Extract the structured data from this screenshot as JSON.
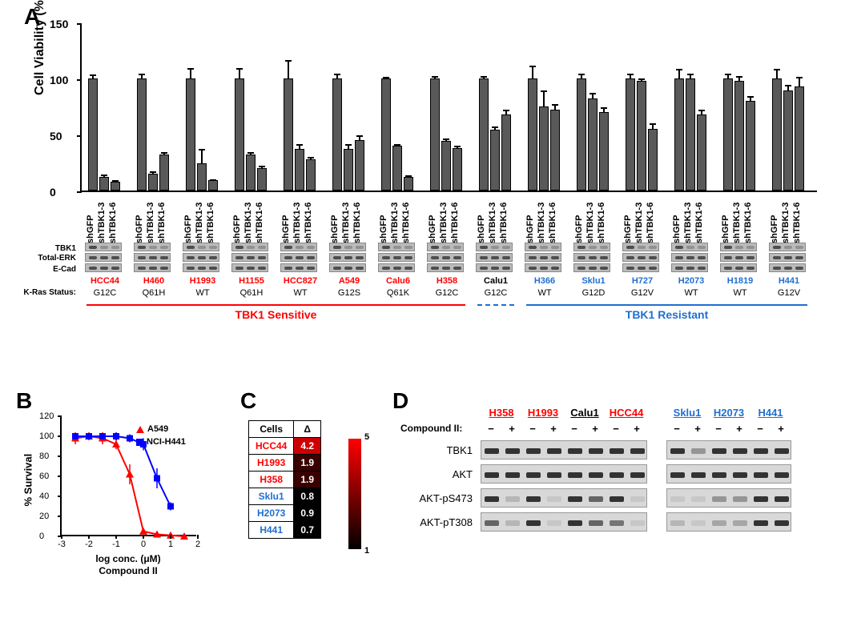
{
  "panelA": {
    "label": "A",
    "ylabel": "Cell Viability (%)",
    "ylim": [
      0,
      150
    ],
    "yticks": [
      0,
      50,
      100,
      150
    ],
    "bar_color": "#595959",
    "conditions": [
      "shGFP",
      "shTBK1-3",
      "shTBK1-6"
    ],
    "blot_rows": [
      "TBK1",
      "Total-ERK",
      "E-Cad"
    ],
    "cell_lines": [
      {
        "name": "HCC44",
        "kras": "G12C",
        "group": "sensitive",
        "color": "#ff0000",
        "values": [
          100,
          12,
          8
        ],
        "err": [
          4,
          3,
          2
        ]
      },
      {
        "name": "H460",
        "kras": "Q61H",
        "group": "sensitive",
        "color": "#ff0000",
        "values": [
          100,
          15,
          32
        ],
        "err": [
          5,
          3,
          3
        ]
      },
      {
        "name": "H1993",
        "kras": "WT",
        "group": "sensitive",
        "color": "#ff0000",
        "values": [
          100,
          24,
          9
        ],
        "err": [
          10,
          14,
          2
        ]
      },
      {
        "name": "H1155",
        "kras": "Q61H",
        "group": "sensitive",
        "color": "#ff0000",
        "values": [
          100,
          32,
          20
        ],
        "err": [
          10,
          3,
          3
        ]
      },
      {
        "name": "HCC827",
        "kras": "WT",
        "group": "sensitive",
        "color": "#ff0000",
        "values": [
          100,
          37,
          28
        ],
        "err": [
          17,
          5,
          3
        ]
      },
      {
        "name": "A549",
        "kras": "G12S",
        "group": "sensitive",
        "color": "#ff0000",
        "values": [
          100,
          37,
          45
        ],
        "err": [
          5,
          5,
          5
        ]
      },
      {
        "name": "Calu6",
        "kras": "Q61K",
        "group": "sensitive",
        "color": "#ff0000",
        "values": [
          100,
          40,
          12
        ],
        "err": [
          2,
          2,
          2
        ]
      },
      {
        "name": "H358",
        "kras": "G12C",
        "group": "sensitive",
        "color": "#ff0000",
        "values": [
          100,
          44,
          38
        ],
        "err": [
          3,
          3,
          3
        ]
      },
      {
        "name": "Calu1",
        "kras": "G12C",
        "group": "intermediate",
        "color": "#000000",
        "values": [
          100,
          54,
          68
        ],
        "err": [
          3,
          4,
          5
        ]
      },
      {
        "name": "H366",
        "kras": "WT",
        "group": "resistant",
        "color": "#1f6fd1",
        "values": [
          100,
          75,
          72
        ],
        "err": [
          12,
          15,
          6
        ]
      },
      {
        "name": "Sklu1",
        "kras": "G12D",
        "group": "resistant",
        "color": "#1f6fd1",
        "values": [
          100,
          82,
          70
        ],
        "err": [
          5,
          6,
          5
        ]
      },
      {
        "name": "H727",
        "kras": "G12V",
        "group": "resistant",
        "color": "#1f6fd1",
        "values": [
          100,
          98,
          55
        ],
        "err": [
          5,
          3,
          6
        ]
      },
      {
        "name": "H2073",
        "kras": "WT",
        "group": "resistant",
        "color": "#1f6fd1",
        "values": [
          100,
          100,
          68
        ],
        "err": [
          9,
          5,
          5
        ]
      },
      {
        "name": "H1819",
        "kras": "WT",
        "group": "resistant",
        "color": "#1f6fd1",
        "values": [
          100,
          98,
          80
        ],
        "err": [
          5,
          5,
          5
        ]
      },
      {
        "name": "H441",
        "kras": "G12V",
        "group": "resistant",
        "color": "#1f6fd1",
        "values": [
          100,
          89,
          93
        ],
        "err": [
          9,
          6,
          9
        ]
      }
    ],
    "groups": {
      "sensitive": {
        "label": "TBK1 Sensitive",
        "color": "#ff0000"
      },
      "resistant": {
        "label": "TBK1 Resistant",
        "color": "#1f6fd1"
      }
    },
    "kras_label": "K-Ras Status:"
  },
  "panelB": {
    "label": "B",
    "ylabel": "% Survival",
    "xlabel_line1": "log conc. (μM)",
    "xlabel_line2": "Compound II",
    "xlim": [
      -3,
      2
    ],
    "ylim": [
      0,
      120
    ],
    "yticks": [
      0,
      20,
      40,
      60,
      80,
      100,
      120
    ],
    "xticks": [
      -3,
      -2,
      -1,
      0,
      1,
      2
    ],
    "series": [
      {
        "name": "A549",
        "color": "#ff0000",
        "marker": "triangle",
        "x": [
          -2.5,
          -2.0,
          -1.5,
          -1.0,
          -0.5,
          0.0,
          0.5,
          1.0,
          1.5
        ],
        "y": [
          98,
          100,
          98,
          92,
          62,
          5,
          2,
          1,
          0
        ],
        "err": [
          6,
          4,
          6,
          5,
          10,
          3,
          1,
          1,
          0
        ]
      },
      {
        "name": "NCI-H441",
        "color": "#0000ff",
        "marker": "square",
        "x": [
          -2.5,
          -2.0,
          -1.5,
          -1.0,
          -0.5,
          0.0,
          0.5,
          1.0
        ],
        "y": [
          100,
          100,
          100,
          100,
          98,
          92,
          58,
          30
        ],
        "err": [
          3,
          3,
          3,
          4,
          4,
          6,
          10,
          4
        ]
      }
    ]
  },
  "panelC": {
    "label": "C",
    "columns": [
      "Cells",
      "Δ"
    ],
    "rows": [
      {
        "cell": "HCC44",
        "color": "#ff0000",
        "delta": 4.2
      },
      {
        "cell": "H1993",
        "color": "#ff0000",
        "delta": 1.9
      },
      {
        "cell": "H358",
        "color": "#ff0000",
        "delta": 1.9
      },
      {
        "cell": "Sklu1",
        "color": "#1f6fd1",
        "delta": 0.8
      },
      {
        "cell": "H2073",
        "color": "#1f6fd1",
        "delta": 0.9
      },
      {
        "cell": "H441",
        "color": "#1f6fd1",
        "delta": 0.7
      }
    ],
    "heat_range": [
      1,
      5
    ],
    "heat_colors": {
      "low": "#000000",
      "high": "#ff0000"
    }
  },
  "panelD": {
    "label": "D",
    "compound_label": "Compound II:",
    "pm_labels": [
      "−",
      "+"
    ],
    "row_labels": [
      "TBK1",
      "AKT",
      "AKT-pS473",
      "AKT-pT308"
    ],
    "set1": [
      {
        "name": "H358",
        "color": "#ff0000"
      },
      {
        "name": "H1993",
        "color": "#ff0000"
      },
      {
        "name": "Calu1",
        "color": "#000000"
      },
      {
        "name": "HCC44",
        "color": "#ff0000"
      }
    ],
    "set2": [
      {
        "name": "Sklu1",
        "color": "#1f6fd1"
      },
      {
        "name": "H2073",
        "color": "#1f6fd1"
      },
      {
        "name": "H441",
        "color": "#1f6fd1"
      }
    ],
    "band_intensity": {
      "TBK1": {
        "set1": [
          [
            1,
            1
          ],
          [
            1,
            1
          ],
          [
            1,
            1
          ],
          [
            1,
            1
          ]
        ],
        "set2": [
          [
            1,
            0.4
          ],
          [
            1,
            1
          ],
          [
            1,
            1
          ]
        ]
      },
      "AKT": {
        "set1": [
          [
            1,
            1
          ],
          [
            1,
            1
          ],
          [
            1,
            1
          ],
          [
            1,
            1
          ]
        ],
        "set2": [
          [
            1,
            1
          ],
          [
            1,
            1
          ],
          [
            1,
            1
          ]
        ]
      },
      "AKT-pS473": {
        "set1": [
          [
            1,
            0.2
          ],
          [
            1,
            0.1
          ],
          [
            1,
            0.7
          ],
          [
            1,
            0.1
          ]
        ],
        "set2": [
          [
            0.1,
            0.1
          ],
          [
            0.4,
            0.4
          ],
          [
            1,
            1
          ]
        ]
      },
      "AKT-pT308": {
        "set1": [
          [
            0.7,
            0.2
          ],
          [
            1,
            0.1
          ],
          [
            1,
            0.7
          ],
          [
            0.6,
            0.1
          ]
        ],
        "set2": [
          [
            0.2,
            0.1
          ],
          [
            0.3,
            0.3
          ],
          [
            1,
            1
          ]
        ]
      }
    }
  }
}
